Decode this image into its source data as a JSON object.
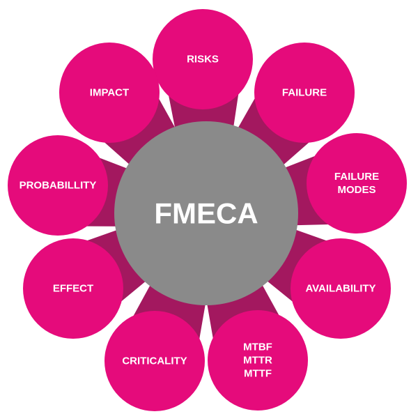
{
  "center": {
    "label": "FMECA"
  },
  "nodes": [
    {
      "id": "risks",
      "lines": [
        "RISKS"
      ]
    },
    {
      "id": "failure",
      "lines": [
        "FAILURE"
      ]
    },
    {
      "id": "failure-modes",
      "lines": [
        "FAILURE",
        "MODES"
      ]
    },
    {
      "id": "availability",
      "lines": [
        "AVAILABILITY"
      ]
    },
    {
      "id": "mtbf-mttr-mttf",
      "lines": [
        "MTBF",
        "MTTR",
        "MTTF"
      ]
    },
    {
      "id": "criticality",
      "lines": [
        "CRITICALITY"
      ]
    },
    {
      "id": "effect",
      "lines": [
        "EFFECT"
      ]
    },
    {
      "id": "probability",
      "lines": [
        "PROBABILLITY"
      ]
    },
    {
      "id": "impact",
      "lines": [
        "IMPACT"
      ]
    }
  ],
  "colors": {
    "node": "#e50b7b",
    "connector": "#a3185f",
    "center": "#8a8a8a",
    "text": "#ffffff"
  }
}
